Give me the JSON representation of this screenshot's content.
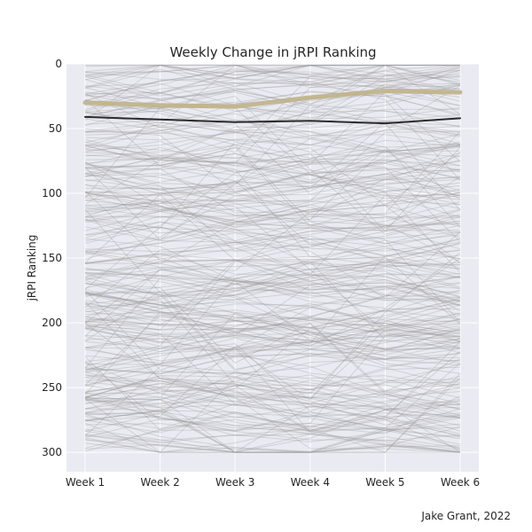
{
  "chart_data": {
    "type": "line",
    "title": "Weekly Change in jRPI Ranking",
    "xlabel": "",
    "ylabel": "jRPI Ranking",
    "categories": [
      "Week 1",
      "Week 2",
      "Week 3",
      "Week 4",
      "Week 5",
      "Week 6"
    ],
    "ylim": [
      315,
      0
    ],
    "y_inverted": true,
    "yticks": [
      0,
      50,
      100,
      150,
      200,
      250,
      300
    ],
    "grid": true,
    "legend": "none",
    "background_series": {
      "description_color": "#999999",
      "rank_range": [
        1,
        300
      ],
      "count": 300
    },
    "series": [
      {
        "values": [
          30,
          32,
          33,
          26,
          21,
          22
        ],
        "color": "#bfb388"
      },
      {
        "values": [
          41,
          43,
          45,
          44,
          46,
          42
        ],
        "color": "#2b2b2b"
      }
    ]
  },
  "credit": "Jake Grant, 2022",
  "colors": {
    "plot_bg": "#eaeaf2",
    "grid": "#ffffff",
    "text": "#262626"
  }
}
